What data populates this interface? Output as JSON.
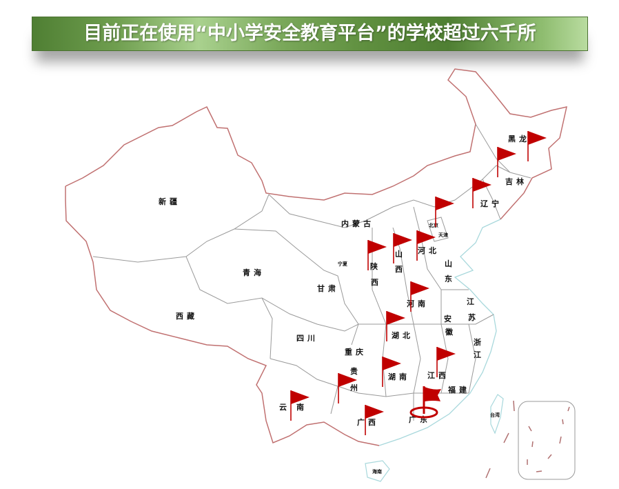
{
  "title": "目前正在使用“中小学安全教育平台”的学校超过六千所",
  "colors": {
    "flag": "#c00000",
    "border": "#c07070",
    "province_border": "#999999",
    "coast": "#a8d8dc",
    "title_green": "#5f8f3f"
  },
  "provinces": [
    "黑龙",
    "吉林",
    "辽宁",
    "北京",
    "天津",
    "河北",
    "山",
    "东",
    "山",
    "西",
    "陕",
    "西",
    "内蒙古",
    "宁夏",
    "甘肃",
    "青海",
    "新疆",
    "西藏",
    "四川",
    "重庆",
    "贵",
    "州",
    "云",
    "南",
    "广西",
    "广东",
    "湖南",
    "江西",
    "福建",
    "浙",
    "江",
    "江",
    "苏",
    "安",
    "徽",
    "湖北",
    "河南",
    "台湾",
    "海南"
  ],
  "flags": [
    "黑龙江",
    "吉林",
    "辽宁",
    "北京",
    "河北",
    "山西",
    "陕西",
    "河南",
    "湖北",
    "江西",
    "湖南",
    "贵州",
    "云南",
    "广西"
  ],
  "highlight_flag": "广东",
  "icons": [
    "flag-icon",
    "target-ring-icon"
  ]
}
